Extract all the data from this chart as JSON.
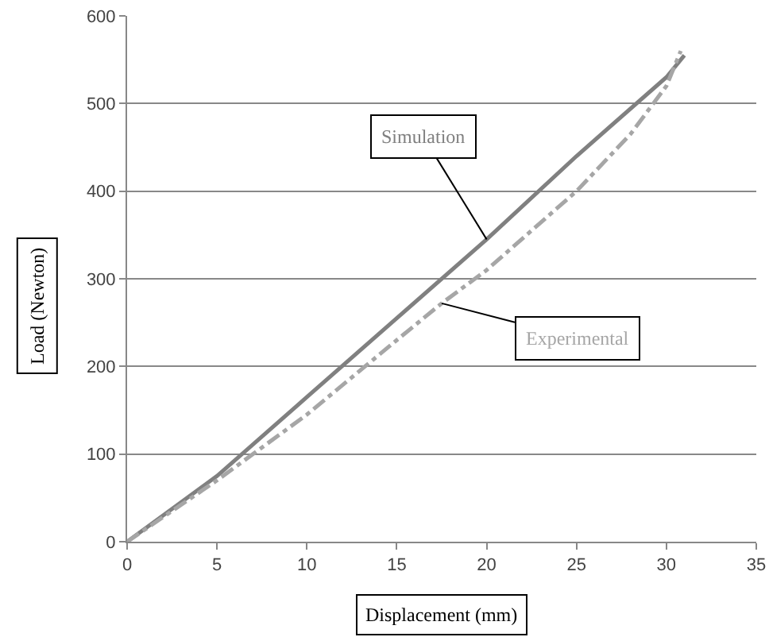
{
  "chart_data": {
    "type": "line",
    "xlabel": "Displacement (mm)",
    "ylabel": "Load (Newton)",
    "xlim": [
      0,
      35
    ],
    "xticks": [
      0,
      5,
      10,
      15,
      20,
      25,
      30,
      35
    ],
    "ylim": [
      0,
      600
    ],
    "yticks": [
      0,
      100,
      200,
      300,
      400,
      500,
      600
    ],
    "grid": "y",
    "legend": false,
    "marker": "none",
    "series": [
      {
        "name": "Simulation",
        "color": "#808080",
        "line_style": "solid",
        "x": [
          0,
          5,
          10,
          15,
          20,
          25,
          30,
          31
        ],
        "values": [
          0,
          75,
          165,
          255,
          345,
          440,
          530,
          555
        ]
      },
      {
        "name": "Experimental",
        "color": "#a6a6a6",
        "line_style": "dashdot",
        "x": [
          0,
          5,
          10,
          15,
          17.5,
          20,
          25,
          28,
          30,
          30.8
        ],
        "values": [
          0,
          70,
          145,
          230,
          272,
          310,
          400,
          465,
          520,
          560
        ]
      }
    ]
  }
}
